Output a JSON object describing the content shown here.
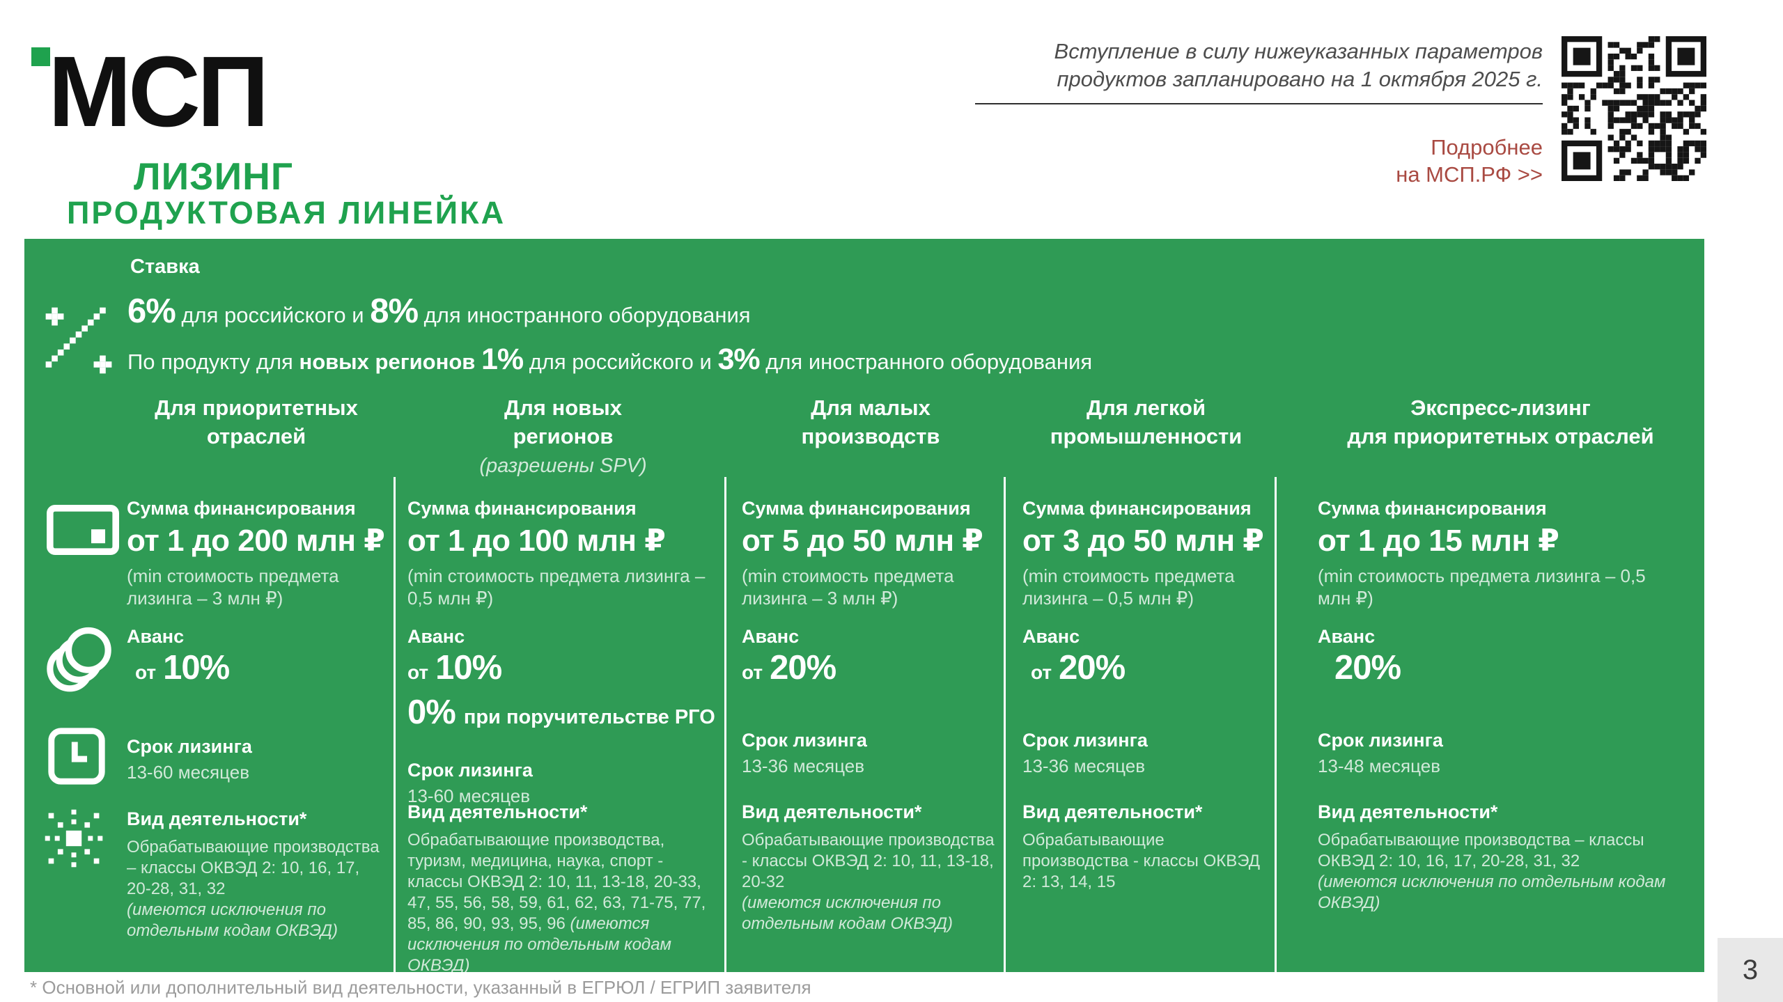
{
  "header": {
    "logo": {
      "main": "МСП",
      "sub": "ЛИЗИНГ"
    },
    "notice": {
      "line1": "Вступление в силу нижеуказанных параметров",
      "line2": "продуктов запланировано на 1 октября 2025 г."
    },
    "more_link": {
      "line1": "Подробнее",
      "line2": "на МСП.РФ >>"
    }
  },
  "title": "ПРОДУКТОВАЯ ЛИНЕЙКА",
  "rates": {
    "label": "Ставка",
    "line1": {
      "pct1": "6%",
      "text1": " для российского и ",
      "pct2": "8%",
      "text2": " для иностранного оборудования"
    },
    "line2": {
      "prefix": "По продукту для ",
      "bold": "новых регионов ",
      "pct1": "1%",
      "text1": " для российского и ",
      "pct2": "3%",
      "text2": " для иностранного оборудования"
    }
  },
  "columns": [
    {
      "header_line1": "Для приоритетных",
      "header_line2": "отраслей",
      "header_note": "",
      "sum_label": "Сумма финансирования",
      "sum_value": "от 1 до 200 млн ₽",
      "sum_note": "(min стоимость предмета лизинга – 3 млн ₽)",
      "advance_label": "Аванс",
      "advance_prefix": "от",
      "advance_value": "10%",
      "advance_extra_pct": "",
      "advance_extra_text": "",
      "term_label": "Срок лизинга",
      "term_value": "13-60 месяцев",
      "activity_label": "Вид деятельности*",
      "activity_text": "Обрабатывающие производства – классы ОКВЭД 2: 10, 16, 17, 20-28, 31, 32 ",
      "activity_note": "(имеются исключения по отдельным кодам ОКВЭД)"
    },
    {
      "header_line1": "Для новых",
      "header_line2": "регионов",
      "header_note": "(разрешены SPV)",
      "sum_label": "Сумма финансирования",
      "sum_value": "от 1 до 100 млн ₽",
      "sum_note": "(min стоимость предмета лизинга – 0,5 млн ₽)",
      "advance_label": "Аванс",
      "advance_prefix": "от",
      "advance_value": "10%",
      "advance_extra_pct": "0%",
      "advance_extra_text": "при поручительстве РГО",
      "term_label": "Срок лизинга",
      "term_value": "13-60 месяцев",
      "activity_label": "Вид деятельности*",
      "activity_text": "Обрабатывающие производства, туризм, медицина, наука, спорт - классы ОКВЭД 2: 10, 11, 13-18, 20-33, 47, 55, 56, 58, 59, 61, 62, 63, 71-75, 77, 85, 86, 90, 93, 95, 96 ",
      "activity_note": "(имеются исключения по отдельным кодам ОКВЭД)"
    },
    {
      "header_line1": "Для малых",
      "header_line2": "производств",
      "header_note": "",
      "sum_label": "Сумма финансирования",
      "sum_value": "от 5 до 50 млн ₽",
      "sum_note": "(min стоимость предмета лизинга – 3 млн ₽)",
      "advance_label": "Аванс",
      "advance_prefix": "от",
      "advance_value": "20%",
      "advance_extra_pct": "",
      "advance_extra_text": "",
      "term_label": "Срок лизинга",
      "term_value": "13-36 месяцев",
      "activity_label": "Вид деятельности*",
      "activity_text": "Обрабатывающие производства - классы ОКВЭД 2: 10, 11, 13-18, 20-32 ",
      "activity_note": "(имеются исключения по отдельным кодам ОКВЭД)"
    },
    {
      "header_line1": "Для легкой",
      "header_line2": "промышленности",
      "header_note": "",
      "sum_label": "Сумма финансирования",
      "sum_value": "от 3 до 50 млн ₽",
      "sum_note": "(min стоимость предмета лизинга – 0,5 млн ₽)",
      "advance_label": "Аванс",
      "advance_prefix": "от",
      "advance_value": "20%",
      "advance_extra_pct": "",
      "advance_extra_text": "",
      "term_label": "Срок лизинга",
      "term_value": "13-36 месяцев",
      "activity_label": "Вид деятельности*",
      "activity_text": "Обрабатывающие производства - классы ОКВЭД 2: 13, 14, 15",
      "activity_note": ""
    },
    {
      "header_line1": "Экспресс-лизинг",
      "header_line2": "для приоритетных отраслей",
      "header_note": "",
      "sum_label": "Сумма финансирования",
      "sum_value": "от 1 до 15 млн ₽",
      "sum_note": "(min стоимость предмета лизинга – 0,5 млн ₽)",
      "advance_label": "Аванс",
      "advance_prefix": "",
      "advance_value": "20%",
      "advance_extra_pct": "",
      "advance_extra_text": "",
      "term_label": "Срок лизинга",
      "term_value": "13-48 месяцев",
      "activity_label": "Вид деятельности*",
      "activity_text": "Обрабатывающие производства – классы ОКВЭД 2: 10, 16, 17, 20-28, 31, 32 ",
      "activity_note": "(имеются исключения по отдельным кодам ОКВЭД)"
    }
  ],
  "footnote": "* Основной или дополнительный вид деятельности, указанный в ЕГРЮЛ / ЕГРИП заявителя",
  "page_number": "3",
  "colors": {
    "brand_green": "#2f9b55",
    "accent_green": "#1fa24e",
    "link_red": "#a94a42"
  }
}
